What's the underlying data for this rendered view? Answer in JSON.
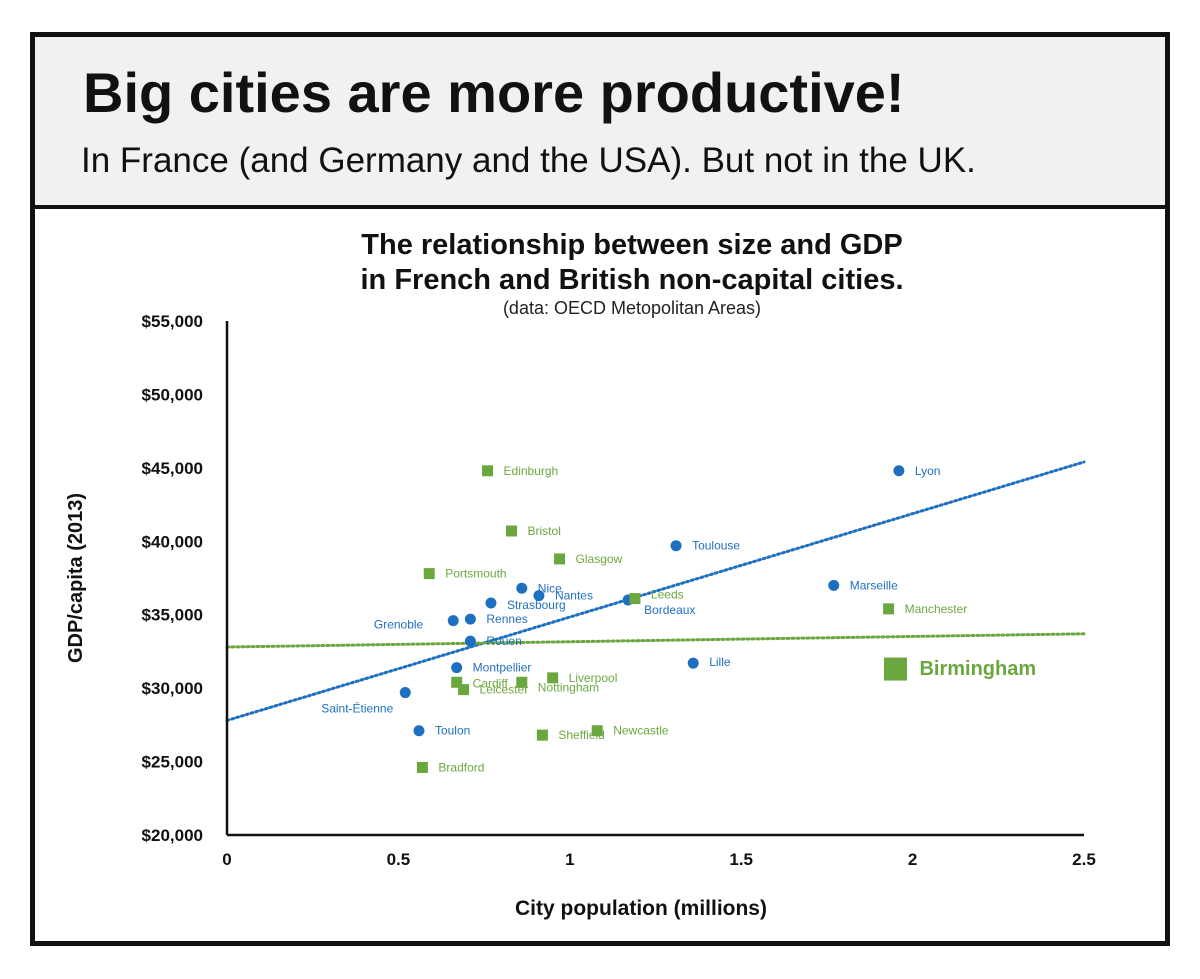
{
  "header": {
    "headline": "Big cities are more productive!",
    "subhead": "In France (and Germany and the USA). But not in the UK."
  },
  "chart_data": {
    "type": "scatter",
    "title_line1": "The relationship between size and GDP",
    "title_line2": "in French and British non-capital cities.",
    "source": "(data: OECD Metopolitan Areas)",
    "xlabel": "City population (millions)",
    "ylabel": "GDP/capita (2013)",
    "xlim": [
      0,
      2.5
    ],
    "ylim": [
      20000,
      55000
    ],
    "x_ticks": [
      0,
      0.5,
      1,
      1.5,
      2,
      2.5
    ],
    "x_tick_labels": [
      "0",
      "0.5",
      "1",
      "1.5",
      "2",
      "2.5"
    ],
    "y_ticks": [
      20000,
      25000,
      30000,
      35000,
      40000,
      45000,
      50000,
      55000
    ],
    "y_tick_labels": [
      "$20,000",
      "$25,000",
      "$30,000",
      "$35,000",
      "$40,000",
      "$45,000",
      "$50,000",
      "$55,000"
    ],
    "grid": false,
    "series": [
      {
        "country": "France",
        "color": "#1f6fc1",
        "marker": "circle",
        "points": [
          {
            "label": "Lyon",
            "x": 1.96,
            "y": 44800
          },
          {
            "label": "Toulouse",
            "x": 1.31,
            "y": 39700
          },
          {
            "label": "Marseille",
            "x": 1.77,
            "y": 37000
          },
          {
            "label": "Nice",
            "x": 0.86,
            "y": 36800
          },
          {
            "label": "Nantes",
            "x": 0.91,
            "y": 36300
          },
          {
            "label": "Bordeaux",
            "x": 1.17,
            "y": 36000
          },
          {
            "label": "Strasbourg",
            "x": 0.77,
            "y": 35800
          },
          {
            "label": "Rennes",
            "x": 0.71,
            "y": 34700
          },
          {
            "label": "Grenoble",
            "x": 0.66,
            "y": 34600
          },
          {
            "label": "Rouen",
            "x": 0.71,
            "y": 33200
          },
          {
            "label": "Lille",
            "x": 1.36,
            "y": 31700
          },
          {
            "label": "Montpellier",
            "x": 0.67,
            "y": 31400
          },
          {
            "label": "Saint-Étienne",
            "x": 0.52,
            "y": 29700
          },
          {
            "label": "Toulon",
            "x": 0.56,
            "y": 27100
          }
        ],
        "trend": {
          "x0": 0,
          "y0": 27800,
          "x1": 2.5,
          "y1": 45400
        }
      },
      {
        "country": "UK",
        "color": "#6aa83f",
        "marker": "square",
        "points": [
          {
            "label": "Edinburgh",
            "x": 0.76,
            "y": 44800
          },
          {
            "label": "Bristol",
            "x": 0.83,
            "y": 40700
          },
          {
            "label": "Glasgow",
            "x": 0.97,
            "y": 38800
          },
          {
            "label": "Portsmouth",
            "x": 0.59,
            "y": 37800
          },
          {
            "label": "Leeds",
            "x": 1.19,
            "y": 36100
          },
          {
            "label": "Manchester",
            "x": 1.93,
            "y": 35400
          },
          {
            "label": "Birmingham",
            "x": 1.95,
            "y": 31300
          },
          {
            "label": "Liverpool",
            "x": 0.95,
            "y": 30700
          },
          {
            "label": "Cardiff",
            "x": 0.67,
            "y": 30400
          },
          {
            "label": "Nottingham",
            "x": 0.86,
            "y": 30400
          },
          {
            "label": "Leicester",
            "x": 0.69,
            "y": 29900
          },
          {
            "label": "Newcastle",
            "x": 1.08,
            "y": 27100
          },
          {
            "label": "Sheffield",
            "x": 0.92,
            "y": 26800
          },
          {
            "label": "Bradford",
            "x": 0.57,
            "y": 24600
          }
        ],
        "trend": {
          "x0": 0,
          "y0": 32800,
          "x1": 2.5,
          "y1": 33700
        }
      }
    ]
  }
}
